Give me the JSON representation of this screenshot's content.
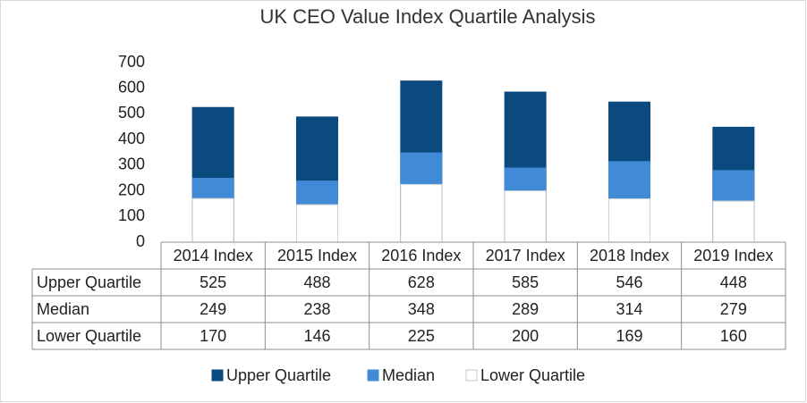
{
  "chart_data": {
    "type": "bar",
    "overlap": true,
    "title": "UK CEO Value Index Quartile Analysis",
    "categories": [
      "2014 Index",
      "2015 Index",
      "2016 Index",
      "2017 Index",
      "2018 Index",
      "2019 Index"
    ],
    "series": [
      {
        "name": "Upper Quartile",
        "color": "#0b4a7e",
        "values": [
          525,
          488,
          628,
          585,
          546,
          448
        ]
      },
      {
        "name": "Median",
        "color": "#418ad6",
        "values": [
          249,
          238,
          348,
          289,
          314,
          279
        ]
      },
      {
        "name": "Lower Quartile",
        "color": "#ffffff",
        "values": [
          170,
          146,
          225,
          200,
          169,
          160
        ]
      }
    ],
    "ylim": [
      0,
      700
    ],
    "yticks": [
      0,
      100,
      200,
      300,
      400,
      500,
      600,
      700
    ],
    "grid": false,
    "data_table": true,
    "legend": "bottom"
  }
}
